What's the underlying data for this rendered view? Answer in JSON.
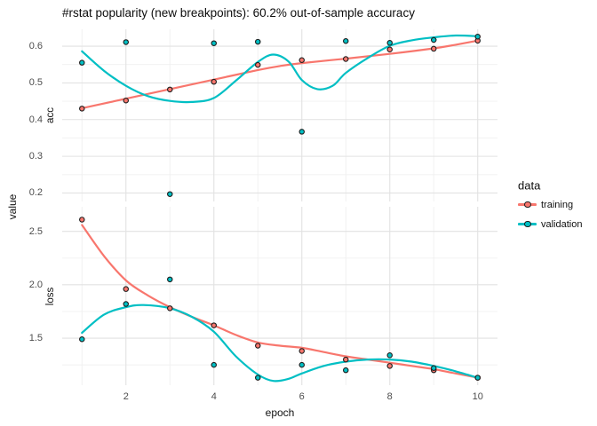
{
  "title": "#rstat popularity (new breakpoints): 60.2% out-of-sample accuracy",
  "axes": {
    "x_title": "epoch",
    "y_title": "value",
    "xlim": [
      0.55,
      10.45
    ],
    "x_ticks": [
      {
        "v": 2,
        "label": "2"
      },
      {
        "v": 4,
        "label": "4"
      },
      {
        "v": 6,
        "label": "6"
      },
      {
        "v": 8,
        "label": "8"
      },
      {
        "v": 10,
        "label": "10"
      }
    ],
    "x_minor": [
      1,
      3,
      5,
      7,
      9
    ]
  },
  "legend": {
    "title": "data",
    "items": [
      {
        "name": "training",
        "label": "training",
        "color": "#F8766D"
      },
      {
        "name": "validation",
        "label": "validation",
        "color": "#00BFC4"
      }
    ]
  },
  "colors": {
    "training": "#F8766D",
    "validation": "#00BFC4",
    "point_outline": "#1f1f1f",
    "grid_major": "#e2e2e2",
    "grid_minor": "#f0f0f0"
  },
  "chart_data": [
    {
      "type": "scatter",
      "facet": "acc",
      "x": [
        1,
        2,
        3,
        4,
        5,
        6,
        7,
        8,
        9,
        10
      ],
      "ylim": [
        0.177,
        0.646
      ],
      "y_ticks": [
        {
          "v": 0.6,
          "label": "0.6"
        },
        {
          "v": 0.5,
          "label": "0.5"
        },
        {
          "v": 0.4,
          "label": "0.4"
        },
        {
          "v": 0.3,
          "label": "0.3"
        },
        {
          "v": 0.2,
          "label": "0.2"
        }
      ],
      "y_minor": [
        0.55,
        0.45,
        0.35,
        0.25
      ],
      "series": [
        {
          "name": "training",
          "points": [
            0.43,
            0.452,
            0.482,
            0.503,
            0.549,
            0.562,
            0.565,
            0.591,
            0.593,
            0.615
          ],
          "smooth": [
            [
              1,
              0.431
            ],
            [
              2,
              0.457
            ],
            [
              3,
              0.483
            ],
            [
              4,
              0.509
            ],
            [
              5,
              0.535
            ],
            [
              5.5,
              0.546
            ],
            [
              6,
              0.554
            ],
            [
              7,
              0.566
            ],
            [
              8,
              0.579
            ],
            [
              9,
              0.594
            ],
            [
              9.5,
              0.604
            ],
            [
              10,
              0.615
            ]
          ]
        },
        {
          "name": "validation",
          "points": [
            0.555,
            0.611,
            0.197,
            0.608,
            0.612,
            0.367,
            0.614,
            0.609,
            0.617,
            0.626
          ],
          "smooth": [
            [
              1,
              0.586
            ],
            [
              1.5,
              0.533
            ],
            [
              2,
              0.492
            ],
            [
              2.5,
              0.464
            ],
            [
              3,
              0.451
            ],
            [
              3.5,
              0.448
            ],
            [
              4,
              0.459
            ],
            [
              4.5,
              0.506
            ],
            [
              5,
              0.557
            ],
            [
              5.35,
              0.577
            ],
            [
              5.7,
              0.558
            ],
            [
              6,
              0.508
            ],
            [
              6.35,
              0.483
            ],
            [
              6.7,
              0.492
            ],
            [
              7,
              0.527
            ],
            [
              7.5,
              0.568
            ],
            [
              8,
              0.601
            ],
            [
              8.5,
              0.616
            ],
            [
              9,
              0.624
            ],
            [
              9.5,
              0.629
            ],
            [
              10,
              0.627
            ]
          ]
        }
      ]
    },
    {
      "type": "scatter",
      "facet": "loss",
      "x": [
        1,
        2,
        3,
        4,
        5,
        6,
        7,
        8,
        9,
        10
      ],
      "ylim": [
        1.06,
        2.73
      ],
      "y_ticks": [
        {
          "v": 2.5,
          "label": "2.5"
        },
        {
          "v": 2.0,
          "label": "2.0"
        },
        {
          "v": 1.5,
          "label": "1.5"
        }
      ],
      "y_minor": [
        2.25,
        1.75,
        1.25
      ],
      "series": [
        {
          "name": "training",
          "points": [
            2.61,
            1.96,
            1.78,
            1.62,
            1.43,
            1.38,
            1.3,
            1.24,
            1.2,
            1.13
          ],
          "smooth": [
            [
              1,
              2.56
            ],
            [
              1.5,
              2.27
            ],
            [
              2,
              2.04
            ],
            [
              2.5,
              1.9
            ],
            [
              3,
              1.79
            ],
            [
              3.5,
              1.7
            ],
            [
              4,
              1.62
            ],
            [
              4.5,
              1.53
            ],
            [
              5,
              1.46
            ],
            [
              5.5,
              1.43
            ],
            [
              6,
              1.41
            ],
            [
              6.5,
              1.37
            ],
            [
              7,
              1.33
            ],
            [
              7.5,
              1.3
            ],
            [
              8,
              1.27
            ],
            [
              8.5,
              1.24
            ],
            [
              9,
              1.21
            ],
            [
              9.5,
              1.17
            ],
            [
              10,
              1.13
            ]
          ]
        },
        {
          "name": "validation",
          "points": [
            1.49,
            1.82,
            2.05,
            1.25,
            1.13,
            1.25,
            1.2,
            1.34,
            1.22,
            1.13
          ],
          "smooth": [
            [
              1,
              1.55
            ],
            [
              1.5,
              1.72
            ],
            [
              2,
              1.79
            ],
            [
              2.4,
              1.81
            ],
            [
              3,
              1.78
            ],
            [
              3.5,
              1.7
            ],
            [
              4,
              1.56
            ],
            [
              4.5,
              1.33
            ],
            [
              5,
              1.16
            ],
            [
              5.35,
              1.1
            ],
            [
              5.7,
              1.12
            ],
            [
              6,
              1.17
            ],
            [
              6.5,
              1.24
            ],
            [
              7,
              1.28
            ],
            [
              7.5,
              1.3
            ],
            [
              8,
              1.3
            ],
            [
              8.5,
              1.28
            ],
            [
              9,
              1.24
            ],
            [
              9.5,
              1.19
            ],
            [
              10,
              1.13
            ]
          ]
        }
      ]
    }
  ]
}
